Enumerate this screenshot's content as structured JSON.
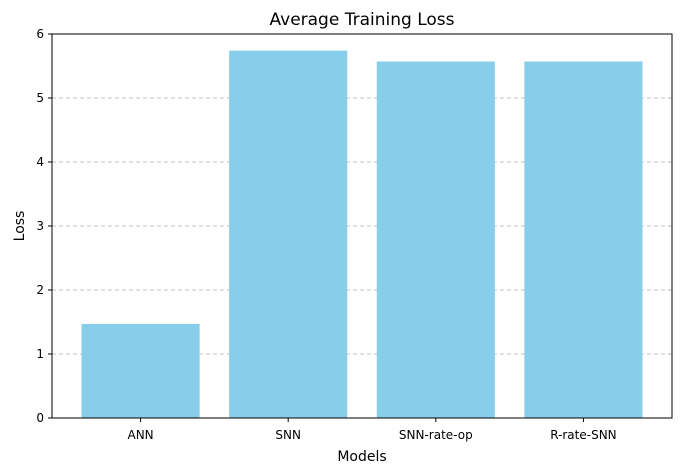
{
  "chart_data": {
    "type": "bar",
    "title": "Average Training Loss",
    "xlabel": "Models",
    "ylabel": "Loss",
    "categories": [
      "ANN",
      "SNN",
      "SNN-rate-op",
      "R-rate-SNN"
    ],
    "values": [
      1.47,
      5.74,
      5.57,
      5.57
    ],
    "ylim": [
      0,
      6
    ],
    "yticks": [
      0,
      1,
      2,
      3,
      4,
      5,
      6
    ],
    "grid": {
      "axis": "y",
      "style": "dashed"
    },
    "bar_color": "#87CEEB"
  }
}
